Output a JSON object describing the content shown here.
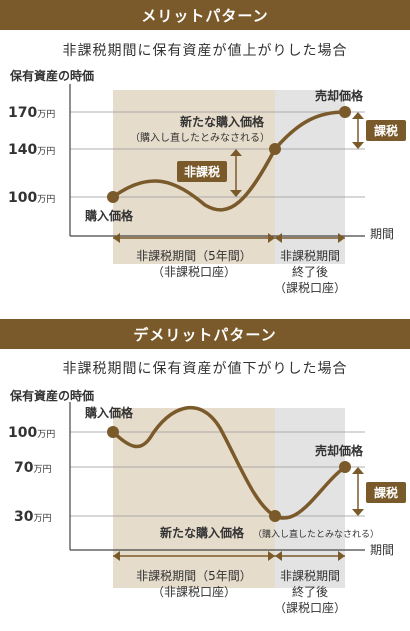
{
  "merit": {
    "header": "メリットパターン",
    "subtitle": "非課税期間に保有資産が値上がりした場合",
    "y_axis_label": "保有資産の時価",
    "ticks": [
      {
        "value": "170",
        "unit": "万円"
      },
      {
        "value": "140",
        "unit": "万円"
      },
      {
        "value": "100",
        "unit": "万円"
      }
    ],
    "x_axis_label": "期間",
    "purchase_label": "購入価格",
    "new_purchase_label": "新たな購入価格",
    "new_purchase_note": "（購入し直したとみなされる）",
    "sale_label": "売却価格",
    "tax_free_badge": "非課税",
    "tax_badge": "課税",
    "period1_line1": "非課税期間（5年間）",
    "period1_line2": "（非課税口座）",
    "period2_line1": "非課税期間",
    "period2_line2": "終了後",
    "period2_line3": "（課税口座）"
  },
  "demerit": {
    "header": "デメリットパターン",
    "subtitle": "非課税期間に保有資産が値下がりした場合",
    "y_axis_label": "保有資産の時価",
    "ticks": [
      {
        "value": "100",
        "unit": "万円"
      },
      {
        "value": "70",
        "unit": "万円"
      },
      {
        "value": "30",
        "unit": "万円"
      }
    ],
    "x_axis_label": "期間",
    "purchase_label": "購入価格",
    "new_purchase_label": "新たな購入価格",
    "new_purchase_note": "（購入し直したとみなされる）",
    "sale_label": "売却価格",
    "tax_badge": "課税",
    "period1_line1": "非課税期間（5年間）",
    "period1_line2": "（非課税口座）",
    "period2_line1": "非課税期間",
    "period2_line2": "終了後",
    "period2_line3": "（課税口座）"
  },
  "colors": {
    "brown": "#7a5a2a",
    "tan_zone": "#e6dccb",
    "gray_zone": "#e3e3e3"
  }
}
